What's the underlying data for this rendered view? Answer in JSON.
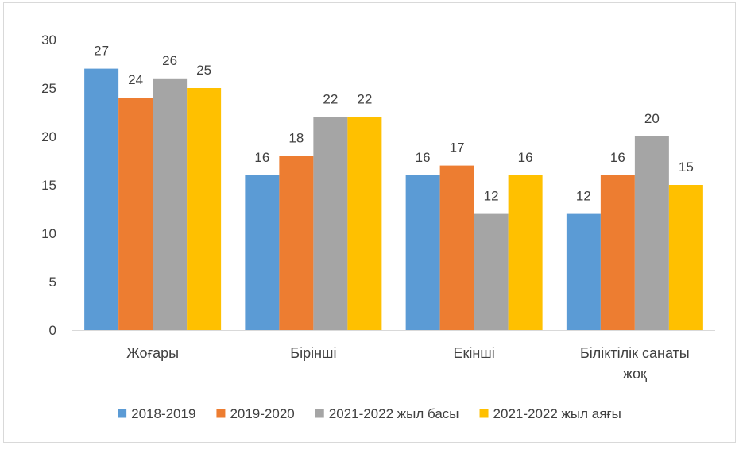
{
  "chart_data": {
    "type": "bar",
    "categories": [
      [
        "Жоғары"
      ],
      [
        "Бірінші"
      ],
      [
        "Екінші"
      ],
      [
        "Біліктілік санаты",
        "жоқ"
      ]
    ],
    "series": [
      {
        "name": "2018-2019",
        "color": "#5b9bd5",
        "values": [
          27,
          16,
          16,
          12
        ]
      },
      {
        "name": "2019-2020",
        "color": "#ed7d31",
        "values": [
          24,
          18,
          17,
          16
        ]
      },
      {
        "name": "2021-2022 жыл басы",
        "color": "#a5a5a5",
        "values": [
          26,
          22,
          12,
          20
        ]
      },
      {
        "name": "2021-2022 жыл аяғы",
        "color": "#ffc000",
        "values": [
          25,
          22,
          16,
          15
        ]
      }
    ],
    "yticks": [
      0,
      5,
      10,
      15,
      20,
      25,
      30
    ],
    "ylim": [
      0,
      30
    ],
    "grid": false,
    "data_labels": true,
    "legend_position": "bottom"
  }
}
